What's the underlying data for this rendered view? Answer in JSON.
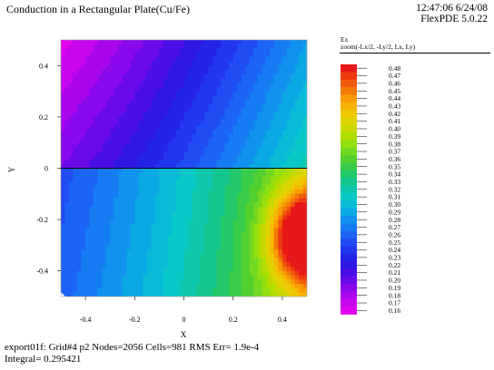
{
  "header": {
    "title": "Conduction in a Rectangular Plate(Cu/Fe)",
    "timestamp": "12:47:06 6/24/08",
    "version": "FlexPDE 5.0.22"
  },
  "legend": {
    "variable": "Ex",
    "zoom": "zoom(-Lx/2, -Ly/2, Lx, Ly)"
  },
  "footer": {
    "line1": "export01f:  Grid#4  p2  Nodes=2056 Cells=981 RMS Err= 1.9e-4",
    "line2": "Integral=  0.295421"
  },
  "chart_data": {
    "type": "heatmap",
    "title": "Conduction in a Rectangular Plate(Cu/Fe)",
    "variable": "Ex",
    "xlabel": "X",
    "ylabel": "Y",
    "xlim": [
      -0.5,
      0.5
    ],
    "ylim": [
      -0.5,
      0.5
    ],
    "xticks": [
      "-0.4",
      "-0.2",
      "0",
      "0.2",
      "0.4"
    ],
    "xtick_values": [
      -0.4,
      -0.2,
      0,
      0.2,
      0.4
    ],
    "yticks": [
      "0.4",
      "0.2",
      "0",
      "-0.2",
      "-0.4"
    ],
    "ytick_values": [
      0.4,
      0.2,
      0,
      -0.2,
      -0.4
    ],
    "interface_y": 0,
    "color_levels": [
      {
        "value": "0.48",
        "color": "#e81818"
      },
      {
        "value": "0.47",
        "color": "#ec3a10"
      },
      {
        "value": "0.46",
        "color": "#f05a0c"
      },
      {
        "value": "0.45",
        "color": "#f47a08"
      },
      {
        "value": "0.44",
        "color": "#f89a06"
      },
      {
        "value": "0.43",
        "color": "#f6b404"
      },
      {
        "value": "0.42",
        "color": "#eec800"
      },
      {
        "value": "0.41",
        "color": "#e0d400"
      },
      {
        "value": "0.40",
        "color": "#c8d800"
      },
      {
        "value": "0.39",
        "color": "#aede00"
      },
      {
        "value": "0.38",
        "color": "#92de10"
      },
      {
        "value": "0.37",
        "color": "#72d820"
      },
      {
        "value": "0.36",
        "color": "#52d030"
      },
      {
        "value": "0.35",
        "color": "#38cc48"
      },
      {
        "value": "0.34",
        "color": "#22c86a"
      },
      {
        "value": "0.33",
        "color": "#14c68e"
      },
      {
        "value": "0.32",
        "color": "#0ec8ae"
      },
      {
        "value": "0.31",
        "color": "#0ac8c8"
      },
      {
        "value": "0.30",
        "color": "#08bcd8"
      },
      {
        "value": "0.29",
        "color": "#0aa8e4"
      },
      {
        "value": "0.28",
        "color": "#1092ee"
      },
      {
        "value": "0.27",
        "color": "#167cf4"
      },
      {
        "value": "0.26",
        "color": "#1c64f6"
      },
      {
        "value": "0.25",
        "color": "#204cf4"
      },
      {
        "value": "0.24",
        "color": "#2236ee"
      },
      {
        "value": "0.23",
        "color": "#2424e6"
      },
      {
        "value": "0.22",
        "color": "#3018e4"
      },
      {
        "value": "0.21",
        "color": "#4a0ee6"
      },
      {
        "value": "0.20",
        "color": "#6a0ae8"
      },
      {
        "value": "0.19",
        "color": "#8a08ec"
      },
      {
        "value": "0.18",
        "color": "#aa06ee"
      },
      {
        "value": "0.17",
        "color": "#c806ee"
      },
      {
        "value": "0.16",
        "color": "#e004ee"
      }
    ]
  }
}
